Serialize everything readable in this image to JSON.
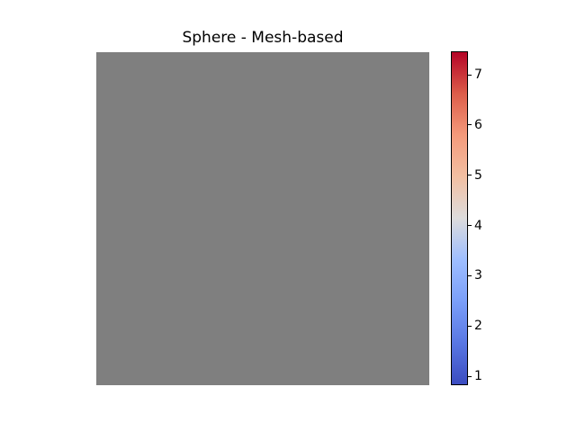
{
  "figure": {
    "background": "#ffffff"
  },
  "chart_data": {
    "type": "heatmap",
    "title": "Sphere - Mesh-based",
    "xlabel": "",
    "ylabel": "",
    "plot_area_fill": "#7f7f7f",
    "colorbar": {
      "colormap": "coolwarm",
      "orientation": "vertical",
      "position": "right",
      "tick_values": [
        1,
        2,
        3,
        4,
        5,
        6,
        7
      ],
      "value_range": [
        0.84,
        7.45
      ],
      "outline_color": "#000000",
      "gradient_stops": [
        {
          "t": 0.0,
          "color": "#3b4cc0"
        },
        {
          "t": 0.125,
          "color": "#5977e3"
        },
        {
          "t": 0.25,
          "color": "#7b9ff9"
        },
        {
          "t": 0.375,
          "color": "#9ebeff"
        },
        {
          "t": 0.5,
          "color": "#dddcdc"
        },
        {
          "t": 0.625,
          "color": "#f2bfa2"
        },
        {
          "t": 0.75,
          "color": "#f49a7b"
        },
        {
          "t": 0.875,
          "color": "#dc5d4a"
        },
        {
          "t": 1.0,
          "color": "#b40426"
        }
      ]
    }
  }
}
